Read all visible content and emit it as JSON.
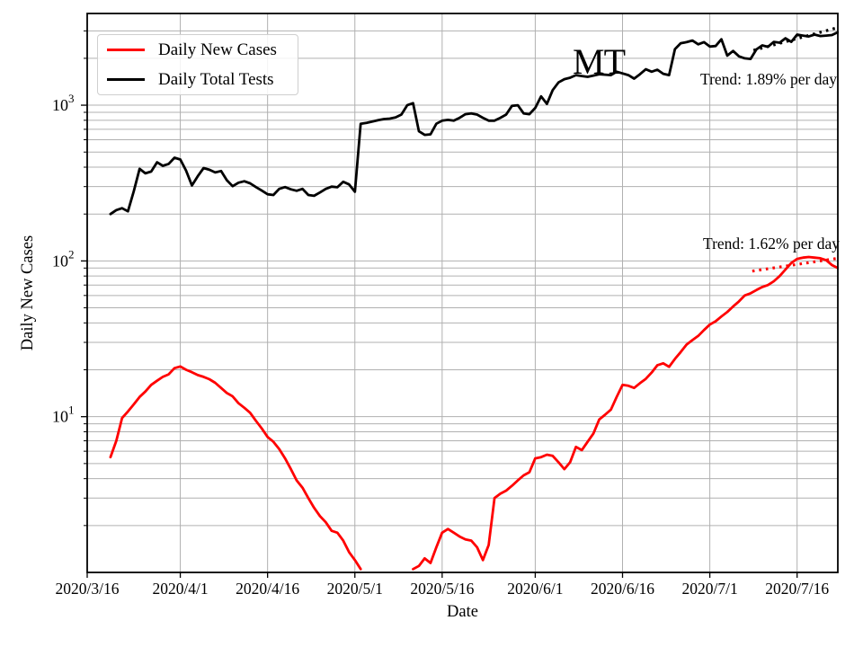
{
  "chart_data": {
    "type": "line",
    "title": "",
    "xlabel": "Date",
    "ylabel": "Daily New Cases",
    "y_scale": "log",
    "ylim": [
      1,
      3880
    ],
    "xlim_days": [
      0,
      129
    ],
    "x_epoch": "2020/3/16",
    "grid": {
      "which": "both",
      "color": "#b0b0b0"
    },
    "x_ticks": [
      {
        "day": 0,
        "label": "2020/3/16"
      },
      {
        "day": 16,
        "label": "2020/4/1"
      },
      {
        "day": 31,
        "label": "2020/4/16"
      },
      {
        "day": 46,
        "label": "2020/5/1"
      },
      {
        "day": 61,
        "label": "2020/5/16"
      },
      {
        "day": 77,
        "label": "2020/6/1"
      },
      {
        "day": 92,
        "label": "2020/6/16"
      },
      {
        "day": 107,
        "label": "2020/7/1"
      },
      {
        "day": 122,
        "label": "2020/7/16"
      }
    ],
    "y_major_exponents": [
      1,
      2,
      3
    ],
    "series": [
      {
        "name": "Daily New Cases",
        "color": "#ff0000",
        "start_day": 4,
        "values": [
          5.5,
          7,
          9.8,
          10.8,
          12,
          13.4,
          14.5,
          16,
          17,
          18,
          18.7,
          20.5,
          21,
          20,
          19.3,
          18.5,
          18,
          17.4,
          16.5,
          15.3,
          14.2,
          13.5,
          12.2,
          11.4,
          10.6,
          9.4,
          8.4,
          7.4,
          6.9,
          6.2,
          5.4,
          4.6,
          3.9,
          3.5,
          3,
          2.6,
          2.3,
          2.1,
          1.85,
          1.8,
          1.6,
          1.35,
          1.2,
          1.05,
          null,
          null,
          null,
          null,
          null,
          null,
          null,
          null,
          1.05,
          1.1,
          1.23,
          1.15,
          1.45,
          1.8,
          1.9,
          1.8,
          1.7,
          1.63,
          1.6,
          1.45,
          1.2,
          1.5,
          3,
          3.2,
          3.35,
          3.6,
          3.9,
          4.2,
          4.4,
          5.4,
          5.5,
          5.7,
          5.6,
          5.1,
          4.6,
          5.1,
          6.4,
          6.1,
          6.9,
          7.8,
          9.6,
          10.3,
          11.1,
          13.4,
          16,
          15.8,
          15.3,
          16.4,
          17.5,
          19.2,
          21.4,
          22,
          20.9,
          23.5,
          26,
          29,
          31,
          33,
          36,
          39,
          41,
          44,
          47,
          51,
          55,
          60,
          62,
          65,
          68,
          70,
          74,
          80,
          88,
          97,
          103,
          105,
          106,
          105,
          104,
          101,
          94,
          90
        ]
      },
      {
        "name": "Daily Total Tests",
        "color": "#000000",
        "start_day": 4,
        "values": [
          200,
          212,
          218,
          208,
          280,
          390,
          365,
          375,
          430,
          408,
          420,
          460,
          448,
          380,
          305,
          350,
          395,
          385,
          370,
          378,
          330,
          302,
          318,
          325,
          315,
          298,
          283,
          268,
          265,
          290,
          298,
          288,
          282,
          290,
          265,
          262,
          275,
          290,
          300,
          297,
          322,
          310,
          278,
          760,
          770,
          785,
          800,
          815,
          820,
          835,
          870,
          1000,
          1030,
          680,
          645,
          650,
          760,
          795,
          805,
          795,
          830,
          875,
          885,
          870,
          830,
          795,
          795,
          830,
          870,
          990,
          1000,
          885,
          875,
          960,
          1140,
          1020,
          1250,
          1400,
          1470,
          1500,
          1560,
          1540,
          1520,
          1550,
          1580,
          1570,
          1560,
          1640,
          1600,
          1560,
          1480,
          1580,
          1700,
          1640,
          1690,
          1590,
          1560,
          2290,
          2500,
          2540,
          2600,
          2460,
          2540,
          2380,
          2400,
          2650,
          2080,
          2230,
          2060,
          2000,
          1980,
          2280,
          2420,
          2370,
          2550,
          2520,
          2690,
          2550,
          2840,
          2800,
          2760,
          2840,
          2780,
          2800,
          2820,
          2940
        ]
      }
    ],
    "trend_lines": [
      {
        "name": "tests-trend",
        "color": "#000000",
        "style": "dotted",
        "start_day": 114.5,
        "start_value": 2250,
        "end_day": 129,
        "end_value": 3150
      },
      {
        "name": "cases-trend",
        "color": "#ff0000",
        "style": "dotted",
        "start_day": 114.3,
        "start_value": 86,
        "end_day": 129,
        "end_value": 104
      }
    ],
    "annotations": {
      "state_label": "MT",
      "trend_tests": "Trend: 1.89% per day",
      "trend_cases": "Trend: 1.62% per day"
    },
    "legend": {
      "location": "upper left",
      "items": [
        {
          "label": "Daily New Cases",
          "color": "#ff0000"
        },
        {
          "label": "Daily Total Tests",
          "color": "#000000"
        }
      ]
    },
    "colors": {
      "axes": "#000000",
      "grid": "#b0b0b0",
      "background": "#ffffff"
    }
  }
}
